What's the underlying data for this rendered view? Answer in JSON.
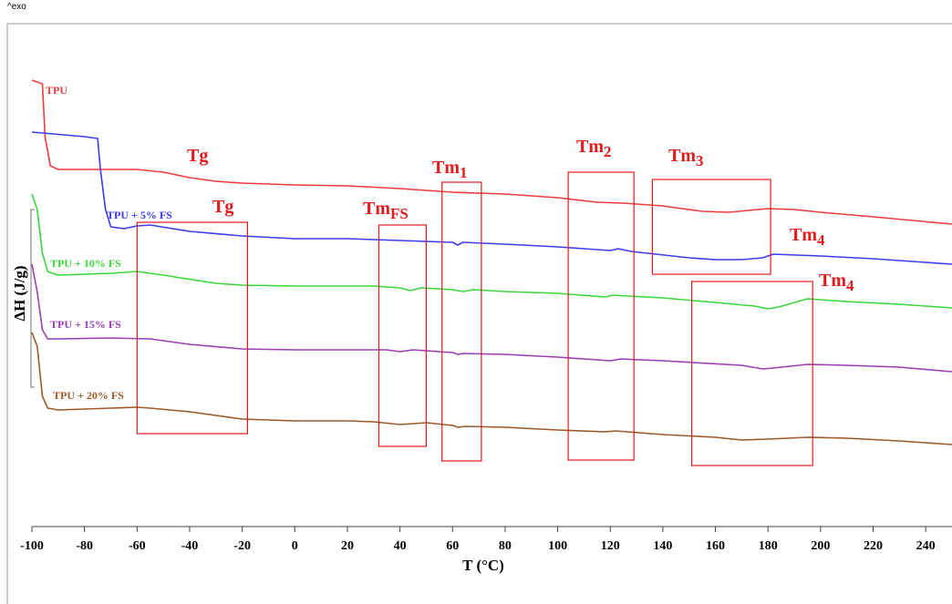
{
  "chart_data": {
    "type": "line",
    "exo_label": "^exo",
    "xlabel": "T (°C)",
    "ylabel": "ΔH (J/g)",
    "xlim": [
      -100,
      250
    ],
    "xticks": [
      -100,
      -80,
      -60,
      -40,
      -20,
      0,
      20,
      40,
      60,
      80,
      100,
      120,
      140,
      160,
      180,
      200,
      220,
      240
    ],
    "grid": false,
    "y_units_note": "arbitrary (offset curves, no y tick labels)",
    "series": [
      {
        "name": "TPU",
        "color": "#f03c3c",
        "points": [
          [
            -100,
            88
          ],
          [
            -96,
            92
          ],
          [
            -95,
            150
          ],
          [
            -93,
            182
          ],
          [
            -90,
            186
          ],
          [
            -80,
            186
          ],
          [
            -60,
            186
          ],
          [
            -50,
            189
          ],
          [
            -40,
            195
          ],
          [
            -30,
            199
          ],
          [
            -20,
            201
          ],
          [
            0,
            203
          ],
          [
            20,
            204
          ],
          [
            40,
            207
          ],
          [
            60,
            211
          ],
          [
            70,
            212
          ],
          [
            80,
            213
          ],
          [
            100,
            217
          ],
          [
            115,
            222
          ],
          [
            125,
            223
          ],
          [
            140,
            226
          ],
          [
            155,
            232
          ],
          [
            165,
            233
          ],
          [
            180,
            229
          ],
          [
            190,
            230
          ],
          [
            200,
            233
          ],
          [
            220,
            238
          ],
          [
            250,
            246
          ]
        ]
      },
      {
        "name": "TPU + 5% FS",
        "color": "#3b3bef",
        "points": [
          [
            -100,
            145
          ],
          [
            -80,
            150
          ],
          [
            -75,
            152
          ],
          [
            -74,
            185
          ],
          [
            -72,
            230
          ],
          [
            -70,
            249
          ],
          [
            -65,
            251
          ],
          [
            -60,
            248
          ],
          [
            -55,
            247
          ],
          [
            -40,
            254
          ],
          [
            -20,
            259
          ],
          [
            0,
            262
          ],
          [
            20,
            262
          ],
          [
            40,
            264
          ],
          [
            60,
            266
          ],
          [
            62,
            269
          ],
          [
            64,
            266
          ],
          [
            80,
            268
          ],
          [
            100,
            271
          ],
          [
            120,
            275
          ],
          [
            123,
            273
          ],
          [
            128,
            276
          ],
          [
            150,
            283
          ],
          [
            160,
            285
          ],
          [
            170,
            285
          ],
          [
            178,
            283
          ],
          [
            182,
            279
          ],
          [
            200,
            281
          ],
          [
            220,
            284
          ],
          [
            250,
            290
          ]
        ]
      },
      {
        "name": "TPU + 10% FS",
        "color": "#3cd63c",
        "points": [
          [
            -100,
            213
          ],
          [
            -98,
            230
          ],
          [
            -96,
            278
          ],
          [
            -94,
            298
          ],
          [
            -90,
            302
          ],
          [
            -70,
            300
          ],
          [
            -60,
            298
          ],
          [
            -50,
            302
          ],
          [
            -30,
            311
          ],
          [
            -20,
            313
          ],
          [
            0,
            314
          ],
          [
            20,
            314
          ],
          [
            30,
            314
          ],
          [
            40,
            316
          ],
          [
            44,
            319
          ],
          [
            48,
            316
          ],
          [
            60,
            318
          ],
          [
            64,
            320
          ],
          [
            68,
            318
          ],
          [
            80,
            320
          ],
          [
            100,
            322
          ],
          [
            118,
            326
          ],
          [
            121,
            324
          ],
          [
            140,
            327
          ],
          [
            160,
            332
          ],
          [
            175,
            336
          ],
          [
            180,
            339
          ],
          [
            184,
            337
          ],
          [
            195,
            328
          ],
          [
            210,
            331
          ],
          [
            230,
            334
          ],
          [
            250,
            338
          ]
        ]
      },
      {
        "name": "TPU + 15% FS",
        "color": "#9b3fb3",
        "points": [
          [
            -100,
            290
          ],
          [
            -98,
            320
          ],
          [
            -96,
            362
          ],
          [
            -94,
            372
          ],
          [
            -90,
            372
          ],
          [
            -70,
            371
          ],
          [
            -55,
            372
          ],
          [
            -40,
            378
          ],
          [
            -20,
            383
          ],
          [
            0,
            384
          ],
          [
            20,
            384
          ],
          [
            35,
            384
          ],
          [
            40,
            386
          ],
          [
            45,
            384
          ],
          [
            60,
            387
          ],
          [
            62,
            389
          ],
          [
            64,
            388
          ],
          [
            80,
            389
          ],
          [
            100,
            392
          ],
          [
            120,
            396
          ],
          [
            124,
            394
          ],
          [
            140,
            396
          ],
          [
            170,
            401
          ],
          [
            178,
            405
          ],
          [
            182,
            404
          ],
          [
            195,
            400
          ],
          [
            210,
            401
          ],
          [
            230,
            403
          ],
          [
            250,
            408
          ]
        ]
      },
      {
        "name": "TPU + 20% FS",
        "color": "#9c5a2a",
        "points": [
          [
            -100,
            365
          ],
          [
            -98,
            380
          ],
          [
            -96,
            435
          ],
          [
            -94,
            448
          ],
          [
            -90,
            450
          ],
          [
            -70,
            448
          ],
          [
            -60,
            447
          ],
          [
            -55,
            448
          ],
          [
            -40,
            452
          ],
          [
            -20,
            460
          ],
          [
            0,
            462
          ],
          [
            20,
            462
          ],
          [
            30,
            463
          ],
          [
            40,
            466
          ],
          [
            45,
            465
          ],
          [
            50,
            464
          ],
          [
            60,
            467
          ],
          [
            62,
            469
          ],
          [
            65,
            468
          ],
          [
            80,
            469
          ],
          [
            100,
            472
          ],
          [
            118,
            474
          ],
          [
            122,
            473
          ],
          [
            140,
            477
          ],
          [
            160,
            480
          ],
          [
            170,
            483
          ],
          [
            180,
            482
          ],
          [
            195,
            480
          ],
          [
            210,
            481
          ],
          [
            230,
            484
          ],
          [
            250,
            488
          ]
        ]
      }
    ],
    "annotations": [
      {
        "text": "Tg",
        "sub": "",
        "color": "#e31a1c"
      },
      {
        "text": "Tg",
        "sub": "",
        "color": "#e31a1c"
      },
      {
        "text": "Tm",
        "sub": "FS",
        "color": "#e31a1c"
      },
      {
        "text": "Tm",
        "sub": "1",
        "color": "#e31a1c"
      },
      {
        "text": "Tm",
        "sub": "2",
        "color": "#e31a1c"
      },
      {
        "text": "Tm",
        "sub": "3",
        "color": "#e31a1c"
      },
      {
        "text": "Tm",
        "sub": "4",
        "color": "#e31a1c"
      },
      {
        "text": "Tm",
        "sub": "4",
        "color": "#e31a1c"
      }
    ],
    "regions": [
      {
        "name": "tg-region",
        "x_range": [
          -60,
          -18
        ]
      },
      {
        "name": "tmfs-region",
        "x_range": [
          32,
          50
        ]
      },
      {
        "name": "tm1-region",
        "x_range": [
          56,
          71
        ]
      },
      {
        "name": "tm2-region",
        "x_range": [
          104,
          129
        ]
      },
      {
        "name": "tm3-region",
        "x_range": [
          136,
          181
        ]
      },
      {
        "name": "tm4-region",
        "x_range": [
          151,
          197
        ]
      }
    ]
  }
}
